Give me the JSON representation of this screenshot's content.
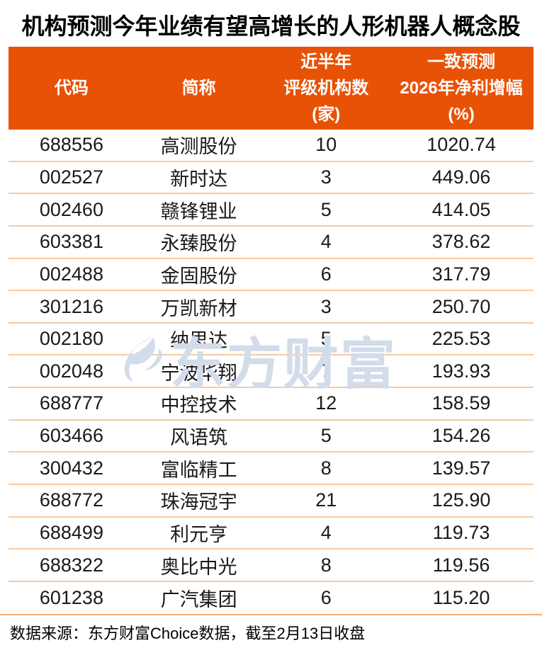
{
  "title": "机构预测今年业绩有望高增长的人形机器人概念股",
  "colors": {
    "header_bg": "#e85206",
    "header_text": "#ffffff",
    "row_divider": "#f8c9a2",
    "footer_divider": "#f1ab76",
    "watermark": "#d2dcea",
    "body_text": "#1a1a1a"
  },
  "header": {
    "col_code": "代码",
    "col_name": "简称",
    "col_rating": "近半年\n评级机构数\n(家)",
    "col_forecast": "一致预测\n2026年净利增幅\n(%)"
  },
  "rows": [
    {
      "code": "688556",
      "name": "高测股份",
      "rating": "10",
      "growth": "1020.74"
    },
    {
      "code": "002527",
      "name": "新时达",
      "rating": "3",
      "growth": "449.06"
    },
    {
      "code": "002460",
      "name": "赣锋锂业",
      "rating": "5",
      "growth": "414.05"
    },
    {
      "code": "603381",
      "name": "永臻股份",
      "rating": "4",
      "growth": "378.62"
    },
    {
      "code": "002488",
      "name": "金固股份",
      "rating": "6",
      "growth": "317.79"
    },
    {
      "code": "301216",
      "name": "万凯新材",
      "rating": "3",
      "growth": "250.70"
    },
    {
      "code": "002180",
      "name": "纳思达",
      "rating": "5",
      "growth": "225.53"
    },
    {
      "code": "002048",
      "name": "宁波华翔",
      "rating": "7",
      "growth": "193.93"
    },
    {
      "code": "688777",
      "name": "中控技术",
      "rating": "12",
      "growth": "158.59"
    },
    {
      "code": "603466",
      "name": "风语筑",
      "rating": "5",
      "growth": "154.26"
    },
    {
      "code": "300432",
      "name": "富临精工",
      "rating": "8",
      "growth": "139.57"
    },
    {
      "code": "688772",
      "name": "珠海冠宇",
      "rating": "21",
      "growth": "125.90"
    },
    {
      "code": "688499",
      "name": "利元亨",
      "rating": "4",
      "growth": "119.73"
    },
    {
      "code": "688322",
      "name": "奥比中光",
      "rating": "8",
      "growth": "119.56"
    },
    {
      "code": "601238",
      "name": "广汽集团",
      "rating": "6",
      "growth": "115.20"
    }
  ],
  "watermark": {
    "text": "东方财富"
  },
  "footer": {
    "note": "数据来源：东方财富Choice数据，截至2月13日收盘"
  },
  "chart_data": {
    "type": "table",
    "title": "机构预测今年业绩有望高增长的人形机器人概念股",
    "columns": [
      "代码",
      "简称",
      "近半年评级机构数(家)",
      "一致预测2026年净利增幅(%)"
    ],
    "rows": [
      [
        "688556",
        "高测股份",
        10,
        1020.74
      ],
      [
        "002527",
        "新时达",
        3,
        449.06
      ],
      [
        "002460",
        "赣锋锂业",
        5,
        414.05
      ],
      [
        "603381",
        "永臻股份",
        4,
        378.62
      ],
      [
        "002488",
        "金固股份",
        6,
        317.79
      ],
      [
        "301216",
        "万凯新材",
        3,
        250.7
      ],
      [
        "002180",
        "纳思达",
        5,
        225.53
      ],
      [
        "002048",
        "宁波华翔",
        7,
        193.93
      ],
      [
        "688777",
        "中控技术",
        12,
        158.59
      ],
      [
        "603466",
        "风语筑",
        5,
        154.26
      ],
      [
        "300432",
        "富临精工",
        8,
        139.57
      ],
      [
        "688772",
        "珠海冠宇",
        21,
        125.9
      ],
      [
        "688499",
        "利元亨",
        4,
        119.73
      ],
      [
        "688322",
        "奥比中光",
        8,
        119.56
      ],
      [
        "601238",
        "广汽集团",
        6,
        115.2
      ]
    ],
    "source": "数据来源：东方财富Choice数据，截至2月13日收盘",
    "layout": {
      "header_bg": "#e85206",
      "header_text_color": "#ffffff",
      "grid": "horizontal-light-orange"
    }
  }
}
